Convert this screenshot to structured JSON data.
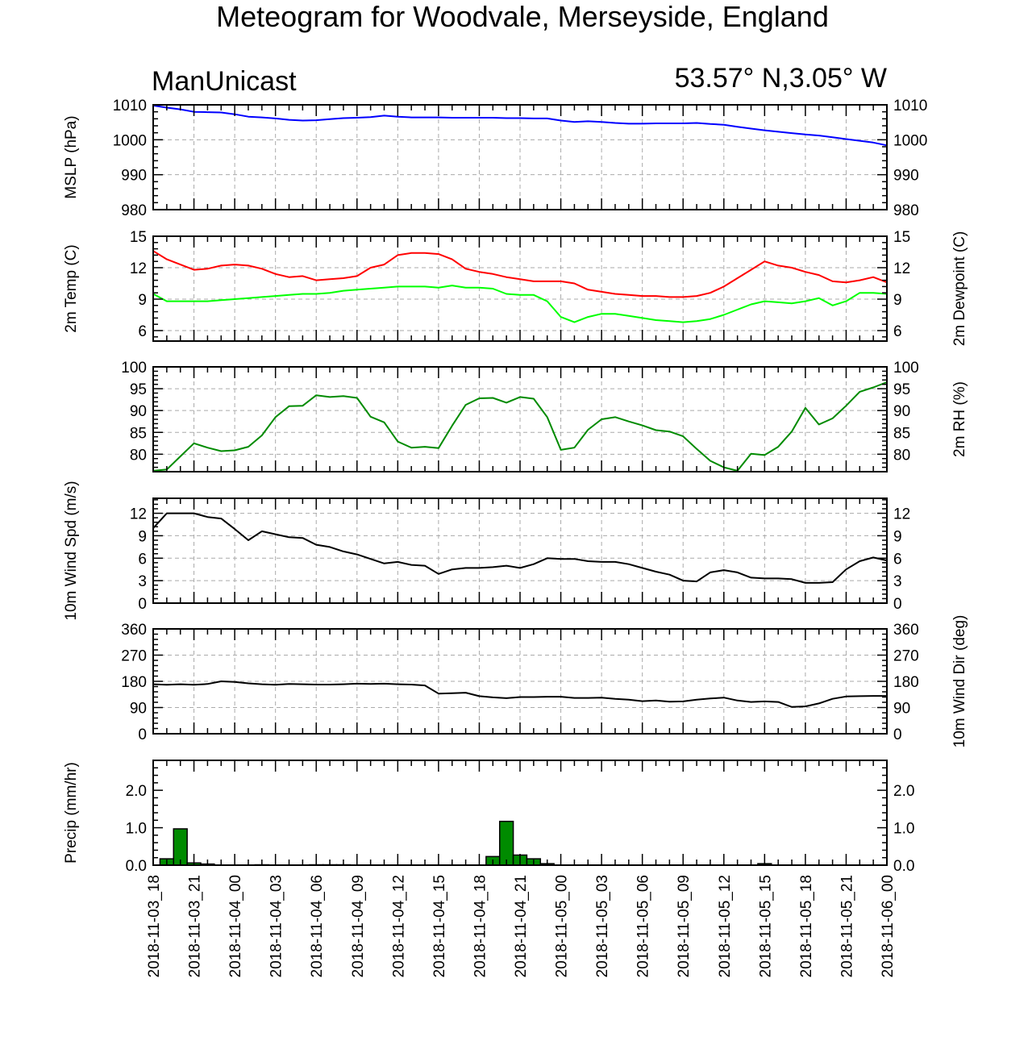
{
  "title": "Meteogram for Woodvale, Merseyside, England",
  "left_subtitle": "ManUnicast",
  "right_subtitle": "53.57° N,3.05° W",
  "colors": {
    "mslp": "#0000ff",
    "temp": "#ff0000",
    "dewpoint": "#00ff00",
    "rh": "#008b00",
    "wind": "#000000",
    "precip_fill": "#008b00",
    "grid": "#aaaaaa"
  },
  "chart_data": [
    {
      "id": "mslp",
      "type": "line",
      "ylabel_left": "MSLP (hPa)",
      "ylabel_right": "",
      "ylim": [
        980,
        1010
      ],
      "yticks": [
        980,
        990,
        1000,
        1010
      ],
      "yticks_right": [
        980,
        990,
        1000,
        1010
      ],
      "grid": true,
      "series": [
        {
          "name": "",
          "color": "#0000ff",
          "x": [
            0,
            1,
            2,
            3,
            4,
            5,
            6,
            7,
            8,
            9,
            10,
            11,
            12,
            13,
            14,
            15,
            16,
            17,
            18,
            19,
            20,
            21,
            22,
            23,
            24,
            25,
            26,
            27,
            28,
            29,
            30,
            31,
            32,
            33,
            34,
            35,
            36,
            37,
            38,
            39,
            40,
            41,
            42,
            43,
            44,
            45,
            46,
            47,
            48,
            49,
            50,
            51,
            52,
            53,
            54
          ],
          "values": [
            1009.8,
            1009.2,
            1008.7,
            1008.0,
            1007.9,
            1007.8,
            1007.3,
            1006.6,
            1006.4,
            1006.1,
            1005.7,
            1005.5,
            1005.6,
            1005.9,
            1006.2,
            1006.3,
            1006.5,
            1006.9,
            1006.6,
            1006.4,
            1006.4,
            1006.4,
            1006.3,
            1006.3,
            1006.3,
            1006.3,
            1006.2,
            1006.2,
            1006.1,
            1006.1,
            1005.5,
            1005.1,
            1005.3,
            1005.1,
            1004.8,
            1004.6,
            1004.6,
            1004.7,
            1004.7,
            1004.7,
            1004.8,
            1004.5,
            1004.3,
            1003.7,
            1003.2,
            1002.7,
            1002.3,
            1001.9,
            1001.5,
            1001.2,
            1000.7,
            1000.2,
            999.7,
            999.2,
            998.4
          ]
        }
      ]
    },
    {
      "id": "temp",
      "type": "line",
      "ylabel_left": "2m Temp (C)",
      "ylabel_right": "2m Dewpoint (C)",
      "ylim": [
        5,
        15
      ],
      "yticks": [
        6,
        9,
        12,
        15
      ],
      "yticks_right": [
        6,
        9,
        12,
        15
      ],
      "grid": true,
      "series": [
        {
          "name": "",
          "color": "#ff0000",
          "x": [
            0,
            1,
            2,
            3,
            4,
            5,
            6,
            7,
            8,
            9,
            10,
            11,
            12,
            13,
            14,
            15,
            16,
            17,
            18,
            19,
            20,
            21,
            22,
            23,
            24,
            25,
            26,
            27,
            28,
            29,
            30,
            31,
            32,
            33,
            34,
            35,
            36,
            37,
            38,
            39,
            40,
            41,
            42,
            43,
            44,
            45,
            46,
            47,
            48,
            49,
            50,
            51,
            52,
            53,
            54
          ],
          "values": [
            13.6,
            12.8,
            12.3,
            11.8,
            11.9,
            12.2,
            12.3,
            12.2,
            11.9,
            11.4,
            11.1,
            11.2,
            10.8,
            10.9,
            11.0,
            11.2,
            12.0,
            12.3,
            13.2,
            13.4,
            13.4,
            13.3,
            12.8,
            11.9,
            11.6,
            11.4,
            11.1,
            10.9,
            10.7,
            10.7,
            10.7,
            10.5,
            9.9,
            9.7,
            9.5,
            9.4,
            9.3,
            9.3,
            9.2,
            9.2,
            9.3,
            9.6,
            10.2,
            11.0,
            11.8,
            12.6,
            12.2,
            12.0,
            11.6,
            11.3,
            10.7,
            10.6,
            10.8,
            11.1,
            10.6
          ]
        },
        {
          "name": "",
          "color": "#00ff00",
          "x": [
            0,
            1,
            2,
            3,
            4,
            5,
            6,
            7,
            8,
            9,
            10,
            11,
            12,
            13,
            14,
            15,
            16,
            17,
            18,
            19,
            20,
            21,
            22,
            23,
            24,
            25,
            26,
            27,
            28,
            29,
            30,
            31,
            32,
            33,
            34,
            35,
            36,
            37,
            38,
            39,
            40,
            41,
            42,
            43,
            44,
            45,
            46,
            47,
            48,
            49,
            50,
            51,
            52,
            53,
            54
          ],
          "values": [
            9.5,
            8.8,
            8.8,
            8.8,
            8.8,
            8.9,
            9.0,
            9.1,
            9.2,
            9.3,
            9.4,
            9.5,
            9.5,
            9.6,
            9.8,
            9.9,
            10.0,
            10.1,
            10.2,
            10.2,
            10.2,
            10.1,
            10.3,
            10.1,
            10.1,
            10.0,
            9.5,
            9.4,
            9.4,
            8.8,
            7.3,
            6.8,
            7.3,
            7.6,
            7.6,
            7.4,
            7.2,
            7.0,
            6.9,
            6.8,
            6.9,
            7.1,
            7.5,
            8.0,
            8.5,
            8.8,
            8.7,
            8.6,
            8.8,
            9.1,
            8.4,
            8.8,
            9.6,
            9.6,
            9.5
          ]
        }
      ]
    },
    {
      "id": "rh",
      "type": "line",
      "ylabel_left": "",
      "ylabel_right": "2m RH (%)",
      "ylim": [
        76,
        100
      ],
      "yticks": [
        80,
        85,
        90,
        95,
        100
      ],
      "yticks_right": [
        80,
        85,
        90,
        95,
        100
      ],
      "grid": true,
      "series": [
        {
          "name": "",
          "color": "#008b00",
          "x": [
            0,
            1,
            2,
            3,
            4,
            5,
            6,
            7,
            8,
            9,
            10,
            11,
            12,
            13,
            14,
            15,
            16,
            17,
            18,
            19,
            20,
            21,
            22,
            23,
            24,
            25,
            26,
            27,
            28,
            29,
            30,
            31,
            32,
            33,
            34,
            35,
            36,
            37,
            38,
            39,
            40,
            41,
            42,
            43,
            44,
            45,
            46,
            47,
            48,
            49,
            50,
            51,
            52,
            53,
            54
          ],
          "values": [
            76.2,
            76.5,
            79.5,
            82.5,
            81.5,
            80.7,
            80.9,
            81.7,
            84.3,
            88.5,
            91.0,
            91.1,
            93.5,
            93.1,
            93.3,
            92.9,
            88.6,
            87.3,
            82.9,
            81.5,
            81.7,
            81.4,
            86.5,
            91.3,
            92.8,
            92.9,
            91.8,
            93.1,
            92.7,
            88.5,
            81.0,
            81.5,
            85.6,
            88.0,
            88.5,
            87.5,
            86.6,
            85.5,
            85.2,
            84.1,
            81.2,
            78.5,
            77.0,
            76.2,
            80.1,
            79.8,
            81.7,
            85.2,
            90.6,
            86.8,
            88.2,
            91.1,
            94.3,
            95.3,
            96.5
          ]
        }
      ]
    },
    {
      "id": "wind_speed",
      "type": "line",
      "ylabel_left": "10m Wind Spd (m/s)",
      "ylabel_right": "",
      "ylim": [
        0,
        14
      ],
      "yticks": [
        0,
        3,
        6,
        9,
        12
      ],
      "yticks_right": [
        0,
        3,
        6,
        9,
        12
      ],
      "grid": true,
      "series": [
        {
          "name": "",
          "color": "#000000",
          "x": [
            0,
            1,
            2,
            3,
            4,
            5,
            6,
            7,
            8,
            9,
            10,
            11,
            12,
            13,
            14,
            15,
            16,
            17,
            18,
            19,
            20,
            21,
            22,
            23,
            24,
            25,
            26,
            27,
            28,
            29,
            30,
            31,
            32,
            33,
            34,
            35,
            36,
            37,
            38,
            39,
            40,
            41,
            42,
            43,
            44,
            45,
            46,
            47,
            48,
            49,
            50,
            51,
            52,
            53,
            54
          ],
          "values": [
            10.0,
            12.0,
            12.0,
            12.0,
            11.5,
            11.3,
            9.9,
            8.4,
            9.6,
            9.2,
            8.8,
            8.7,
            7.8,
            7.5,
            6.9,
            6.5,
            5.9,
            5.3,
            5.5,
            5.1,
            5.0,
            3.9,
            4.5,
            4.7,
            4.7,
            4.8,
            5.0,
            4.7,
            5.2,
            6.0,
            5.9,
            5.9,
            5.6,
            5.5,
            5.5,
            5.2,
            4.7,
            4.2,
            3.8,
            3.0,
            2.9,
            4.1,
            4.4,
            4.1,
            3.4,
            3.3,
            3.3,
            3.2,
            2.7,
            2.7,
            2.8,
            4.5,
            5.6,
            6.1,
            5.7
          ]
        }
      ]
    },
    {
      "id": "wind_dir",
      "type": "line",
      "ylabel_left": "",
      "ylabel_right": "10m Wind Dir (deg)",
      "ylim": [
        0,
        360
      ],
      "yticks": [
        0,
        90,
        180,
        270,
        360
      ],
      "yticks_right": [
        0,
        90,
        180,
        270,
        360
      ],
      "grid": true,
      "series": [
        {
          "name": "",
          "color": "#000000",
          "x": [
            0,
            1,
            2,
            3,
            4,
            5,
            6,
            7,
            8,
            9,
            10,
            11,
            12,
            13,
            14,
            15,
            16,
            17,
            18,
            19,
            20,
            21,
            22,
            23,
            24,
            25,
            26,
            27,
            28,
            29,
            30,
            31,
            32,
            33,
            34,
            35,
            36,
            37,
            38,
            39,
            40,
            41,
            42,
            43,
            44,
            45,
            46,
            47,
            48,
            49,
            50,
            51,
            52,
            53,
            54
          ],
          "values": [
            170,
            168,
            170,
            168,
            171,
            180,
            178,
            173,
            170,
            168,
            171,
            170,
            169,
            169,
            170,
            172,
            171,
            172,
            170,
            169,
            166,
            138,
            139,
            141,
            129,
            125,
            122,
            126,
            126,
            127,
            127,
            123,
            123,
            124,
            120,
            117,
            112,
            114,
            110,
            111,
            117,
            121,
            124,
            114,
            109,
            111,
            109,
            92,
            94,
            104,
            120,
            128,
            129,
            130,
            130
          ]
        }
      ]
    },
    {
      "id": "precip",
      "type": "bar",
      "ylabel_left": "Precip (mm/hr)",
      "ylabel_right": "",
      "ylim": [
        0,
        2.8
      ],
      "yticks": [
        0.0,
        1.0,
        2.0
      ],
      "ytick_labels": [
        "0.0",
        "1.0",
        "2.0"
      ],
      "yticks_right": [
        0.0,
        1.0,
        2.0
      ],
      "grid": false,
      "bars": [
        {
          "x": 1,
          "value": 0.17
        },
        {
          "x": 2,
          "value": 0.97
        },
        {
          "x": 3,
          "value": 0.06
        },
        {
          "x": 4,
          "value": 0.03
        },
        {
          "x": 8,
          "value": 0.01
        },
        {
          "x": 12,
          "value": 0.01
        },
        {
          "x": 13,
          "value": 0.01
        },
        {
          "x": 14,
          "value": 0.01
        },
        {
          "x": 25,
          "value": 0.23
        },
        {
          "x": 26,
          "value": 1.17
        },
        {
          "x": 27,
          "value": 0.27
        },
        {
          "x": 28,
          "value": 0.17
        },
        {
          "x": 29,
          "value": 0.04
        },
        {
          "x": 45,
          "value": 0.04
        }
      ]
    }
  ],
  "x_axis": {
    "unit": "hours from 2018-11-03_18",
    "range": [
      0,
      54
    ],
    "tick_positions": [
      0,
      3,
      6,
      9,
      12,
      15,
      18,
      21,
      24,
      27,
      30,
      33,
      36,
      39,
      42,
      45,
      48,
      51,
      54
    ],
    "tick_labels": [
      "2018-11-03_18",
      "2018-11-03_21",
      "2018-11-04_00",
      "2018-11-04_03",
      "2018-11-04_06",
      "2018-11-04_09",
      "2018-11-04_12",
      "2018-11-04_15",
      "2018-11-04_18",
      "2018-11-04_21",
      "2018-11-05_00",
      "2018-11-05_03",
      "2018-11-05_06",
      "2018-11-05_09",
      "2018-11-05_12",
      "2018-11-05_15",
      "2018-11-05_18",
      "2018-11-05_21",
      "2018-11-06_00"
    ]
  }
}
